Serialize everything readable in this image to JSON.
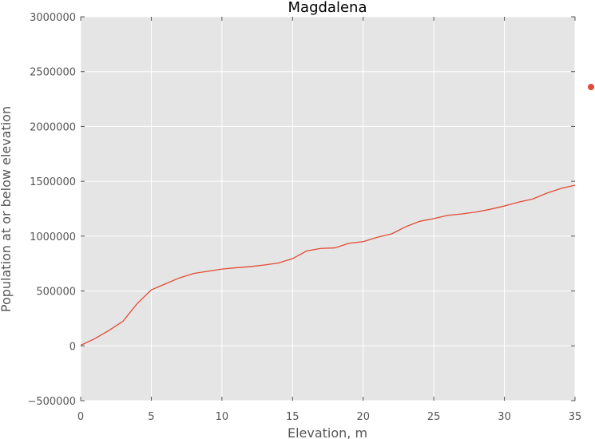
{
  "chart_data": {
    "type": "line",
    "title": "Magdalena",
    "xlabel": "Elevation, m",
    "ylabel": "Population at or below elevation",
    "xlim": [
      0,
      35
    ],
    "ylim": [
      -500000,
      3000000
    ],
    "x_ticks": [
      0,
      5,
      10,
      15,
      20,
      25,
      30,
      35
    ],
    "y_ticks": [
      -500000,
      0,
      500000,
      1000000,
      1500000,
      2000000,
      2500000,
      3000000
    ],
    "grid": true,
    "legend": "right",
    "colors": {
      "series": "#e24a33",
      "plot_bg": "#e5e5e5",
      "grid": "#ffffff"
    },
    "series": [
      {
        "x": [
          0,
          1,
          2,
          3,
          4,
          5,
          6,
          7,
          8,
          9,
          10,
          11,
          12,
          13,
          14,
          15,
          16,
          17,
          18,
          19,
          20,
          21,
          22,
          23,
          24,
          25,
          26,
          27,
          28,
          29,
          30,
          31,
          32,
          33,
          34,
          35
        ],
        "values": [
          5000,
          65000,
          140000,
          225000,
          385000,
          510000,
          565000,
          620000,
          660000,
          680000,
          700000,
          712000,
          722000,
          737000,
          755000,
          795000,
          865000,
          888000,
          893000,
          935000,
          950000,
          990000,
          1020000,
          1085000,
          1135000,
          1160000,
          1190000,
          1203000,
          1220000,
          1245000,
          1275000,
          1310000,
          1338000,
          1392000,
          1435000,
          1465000
        ]
      }
    ]
  }
}
